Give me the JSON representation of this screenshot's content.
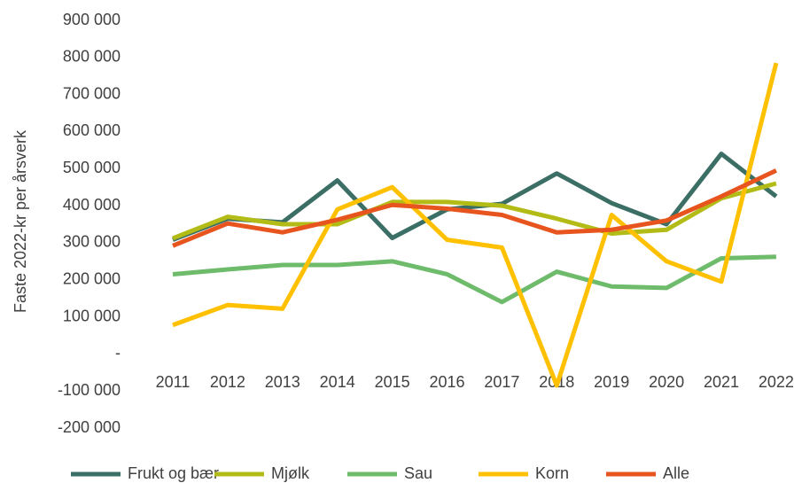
{
  "chart_data": {
    "type": "line",
    "y_label": "Faste 2022-kr per årsverk",
    "categories": [
      "2011",
      "2012",
      "2013",
      "2014",
      "2015",
      "2016",
      "2017",
      "2018",
      "2019",
      "2020",
      "2021",
      "2022"
    ],
    "series": [
      {
        "name": "Frukt og bær",
        "color": "#3b6e64",
        "values": [
          308000,
          365000,
          355000,
          468000,
          313000,
          390000,
          405000,
          487000,
          407000,
          350000,
          540000,
          425000
        ]
      },
      {
        "name": "Mjølk",
        "color": "#b3bc16",
        "values": [
          312000,
          370000,
          350000,
          350000,
          410000,
          410000,
          400000,
          365000,
          325000,
          335000,
          420000,
          460000
        ]
      },
      {
        "name": "Sau",
        "color": "#6dbb6b",
        "values": [
          215000,
          228000,
          240000,
          240000,
          250000,
          215000,
          140000,
          222000,
          182000,
          178000,
          258000,
          262000
        ]
      },
      {
        "name": "Korn",
        "color": "#ffc000",
        "values": [
          78000,
          132000,
          122000,
          390000,
          450000,
          308000,
          287000,
          -85000,
          375000,
          250000,
          195000,
          785000
        ]
      },
      {
        "name": "Alle",
        "color": "#e8541e",
        "values": [
          292000,
          352000,
          328000,
          362000,
          402000,
          392000,
          375000,
          328000,
          335000,
          360000,
          425000,
          495000
        ]
      }
    ],
    "ylim": [
      -200000,
      900000
    ],
    "yticks": [
      {
        "value": -200000,
        "label": "-200 000"
      },
      {
        "value": -100000,
        "label": "-100 000"
      },
      {
        "value": 0,
        "label": "-"
      },
      {
        "value": 100000,
        "label": "100 000"
      },
      {
        "value": 200000,
        "label": "200 000"
      },
      {
        "value": 300000,
        "label": "300 000"
      },
      {
        "value": 400000,
        "label": "400 000"
      },
      {
        "value": 500000,
        "label": "500 000"
      },
      {
        "value": 600000,
        "label": "600 000"
      },
      {
        "value": 700000,
        "label": "700 000"
      },
      {
        "value": 800000,
        "label": "800 000"
      },
      {
        "value": 900000,
        "label": "900 000"
      }
    ],
    "grid": false,
    "legend": "bottom"
  }
}
